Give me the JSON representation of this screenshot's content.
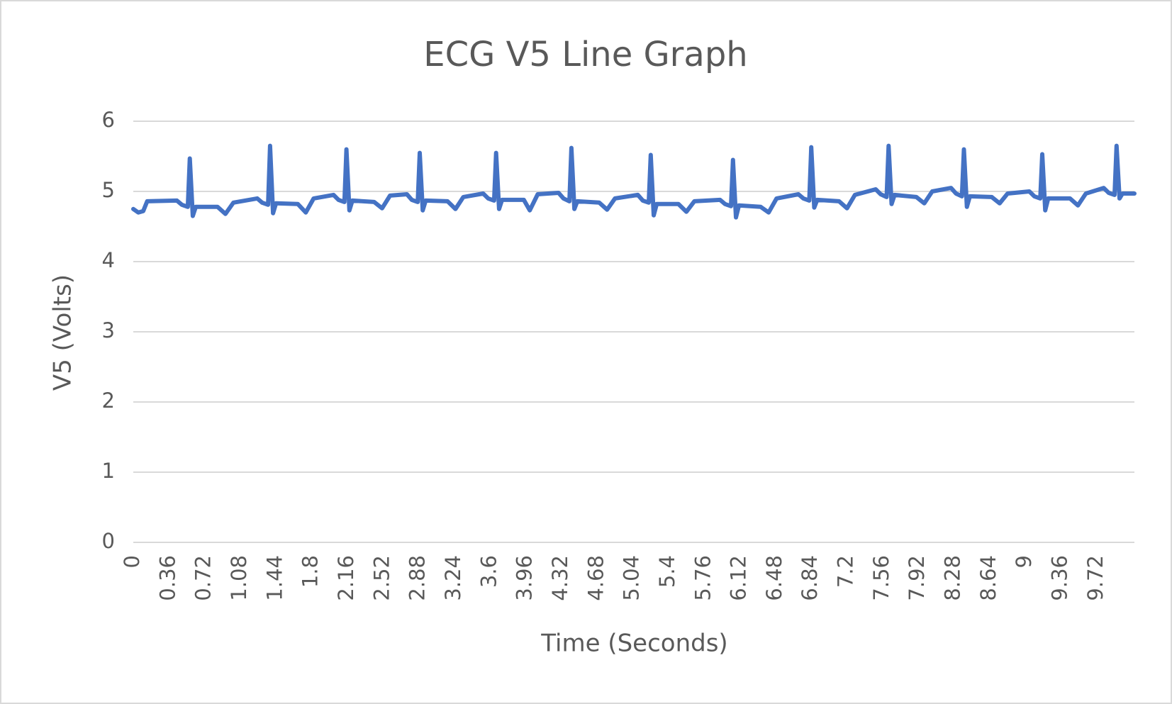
{
  "chart_data": {
    "type": "line",
    "title": "ECG V5 Line Graph",
    "x_label": "Time (Seconds)",
    "y_label": "V5 (Volts)",
    "xlim": [
      0,
      10.1
    ],
    "ylim": [
      0,
      6
    ],
    "xticks": [
      0,
      0.36,
      0.72,
      1.08,
      1.44,
      1.8,
      2.16,
      2.52,
      2.88,
      3.24,
      3.6,
      3.96,
      4.32,
      4.68,
      5.04,
      5.4,
      5.76,
      6.12,
      6.48,
      6.84,
      7.2,
      7.56,
      7.92,
      8.28,
      8.64,
      9,
      9.36,
      9.72
    ],
    "yticks": [
      0,
      1,
      2,
      3,
      4,
      5,
      6
    ],
    "grid": true,
    "series": [
      {
        "color": "#4472c4",
        "x": [
          0,
          0.05,
          0.1,
          0.14,
          0.44,
          0.49,
          0.55,
          0.57,
          0.6,
          0.63,
          0.85,
          0.93,
          1.01,
          1.25,
          1.3,
          1.36,
          1.38,
          1.41,
          1.44,
          1.66,
          1.74,
          1.82,
          2.02,
          2.07,
          2.13,
          2.15,
          2.18,
          2.21,
          2.43,
          2.51,
          2.59,
          2.76,
          2.81,
          2.87,
          2.89,
          2.92,
          2.95,
          3.17,
          3.25,
          3.33,
          3.53,
          3.58,
          3.64,
          3.66,
          3.69,
          3.72,
          3.94,
          4.0,
          4.08,
          4.29,
          4.34,
          4.4,
          4.42,
          4.45,
          4.48,
          4.7,
          4.78,
          4.86,
          5.09,
          5.14,
          5.2,
          5.22,
          5.25,
          5.28,
          5.5,
          5.58,
          5.66,
          5.92,
          5.97,
          6.03,
          6.05,
          6.08,
          6.11,
          6.33,
          6.41,
          6.49,
          6.71,
          6.76,
          6.82,
          6.84,
          6.87,
          6.9,
          7.12,
          7.2,
          7.28,
          7.49,
          7.54,
          7.6,
          7.62,
          7.65,
          7.68,
          7.9,
          7.98,
          8.06,
          8.25,
          8.3,
          8.36,
          8.38,
          8.41,
          8.44,
          8.66,
          8.74,
          8.82,
          9.04,
          9.09,
          9.15,
          9.17,
          9.2,
          9.23,
          9.45,
          9.53,
          9.61,
          9.79,
          9.84,
          9.9,
          9.92,
          9.95,
          9.98,
          10.1
        ],
        "values": [
          4.75,
          4.7,
          4.72,
          4.86,
          4.87,
          4.81,
          4.78,
          5.47,
          4.65,
          4.78,
          4.78,
          4.68,
          4.84,
          4.9,
          4.84,
          4.81,
          5.65,
          4.69,
          4.83,
          4.82,
          4.7,
          4.9,
          4.95,
          4.88,
          4.85,
          5.6,
          4.73,
          4.87,
          4.85,
          4.76,
          4.94,
          4.96,
          4.88,
          4.85,
          5.55,
          4.73,
          4.87,
          4.86,
          4.75,
          4.92,
          4.97,
          4.9,
          4.87,
          5.55,
          4.75,
          4.88,
          4.88,
          4.73,
          4.96,
          4.98,
          4.9,
          4.86,
          5.62,
          4.75,
          4.86,
          4.84,
          4.74,
          4.9,
          4.95,
          4.87,
          4.84,
          5.52,
          4.66,
          4.82,
          4.82,
          4.71,
          4.86,
          4.88,
          4.82,
          4.79,
          5.45,
          4.63,
          4.8,
          4.78,
          4.7,
          4.9,
          4.96,
          4.9,
          4.87,
          5.63,
          4.77,
          4.88,
          4.86,
          4.76,
          4.95,
          5.03,
          4.96,
          4.92,
          5.65,
          4.82,
          4.95,
          4.92,
          4.83,
          5.0,
          5.05,
          4.97,
          4.93,
          5.6,
          4.78,
          4.93,
          4.92,
          4.83,
          4.97,
          5.0,
          4.93,
          4.9,
          5.53,
          4.73,
          4.9,
          4.9,
          4.8,
          4.97,
          5.05,
          4.98,
          4.95,
          5.65,
          4.9,
          4.97,
          4.97
        ]
      }
    ]
  }
}
